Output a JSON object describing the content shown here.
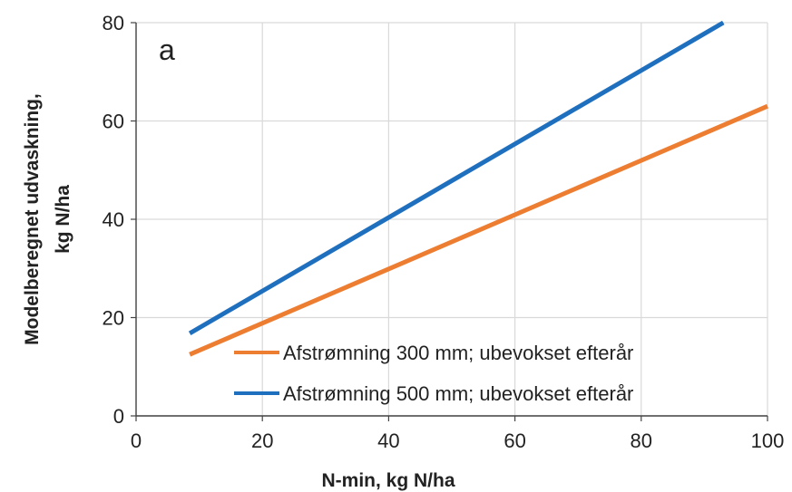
{
  "chart_data": {
    "type": "line",
    "panel_label": "a",
    "xlabel": "N-min, kg N/ha",
    "ylabel_line1": "Modelberegnet udvaskning,",
    "ylabel_line2": "kg N/ha",
    "xlim": [
      0,
      100
    ],
    "ylim": [
      0,
      80
    ],
    "xticks": [
      "0",
      "20",
      "40",
      "60",
      "80",
      "100"
    ],
    "yticks": [
      "0",
      "20",
      "40",
      "60",
      "80"
    ],
    "grid": true,
    "legend_position": "bottom-right",
    "series": [
      {
        "name": "Afstrømning 300 mm; ubevokset efterår",
        "color": "#ED7D31",
        "x": [
          8.5,
          100
        ],
        "y": [
          12.5,
          63
        ]
      },
      {
        "name": "Afstrømning 500 mm; ubevokset efterår",
        "color": "#1F6FBF",
        "x": [
          8.5,
          93
        ],
        "y": [
          16.8,
          80
        ]
      }
    ]
  }
}
